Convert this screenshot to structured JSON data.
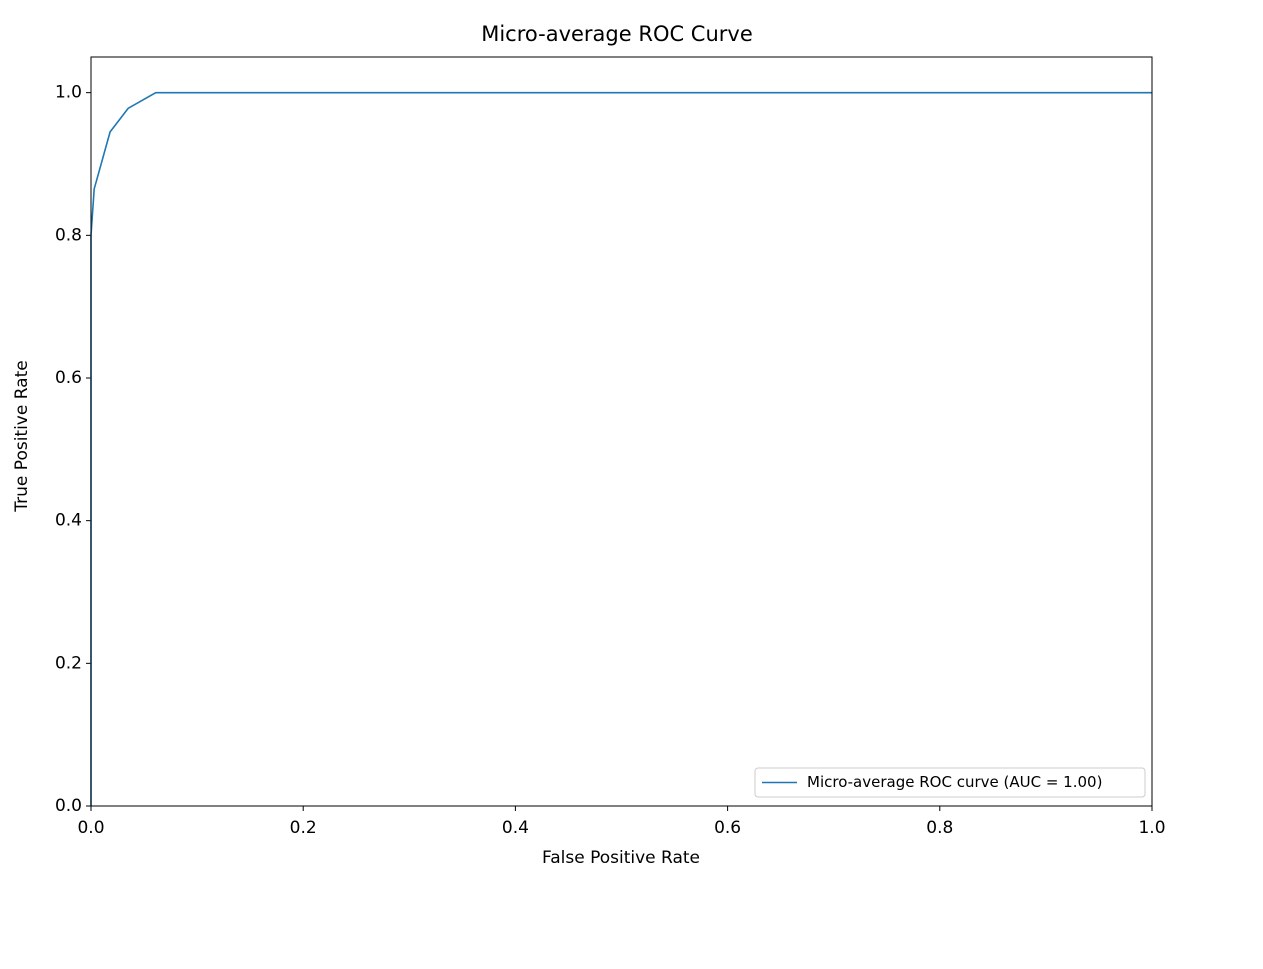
{
  "chart_data": {
    "type": "line",
    "title": "Micro-average ROC Curve",
    "x_label": "False Positive Rate",
    "y_label": "True Positive Rate",
    "x": [
      0,
      0,
      0.003,
      0.018,
      0.035,
      0.061,
      1
    ],
    "series": [
      {
        "name": "Micro-average ROC curve (AUC = 1.00)",
        "color": "#1f77b4",
        "values": [
          0,
          0.8,
          0.865,
          0.945,
          0.978,
          1,
          1
        ]
      }
    ],
    "xlim": [
      0,
      1
    ],
    "ylim": [
      0,
      1.05
    ],
    "xticks": [
      {
        "value": 0,
        "label": "0.0"
      },
      0.2,
      0.4,
      0.6,
      0.8,
      {
        "value": 1,
        "label": "1.0"
      }
    ],
    "yticks": [
      {
        "value": 0,
        "label": "0.0"
      },
      0.2,
      0.4,
      0.6,
      0.8,
      {
        "value": 1,
        "label": "1.0"
      }
    ],
    "grid": false,
    "legend": "lower right"
  }
}
